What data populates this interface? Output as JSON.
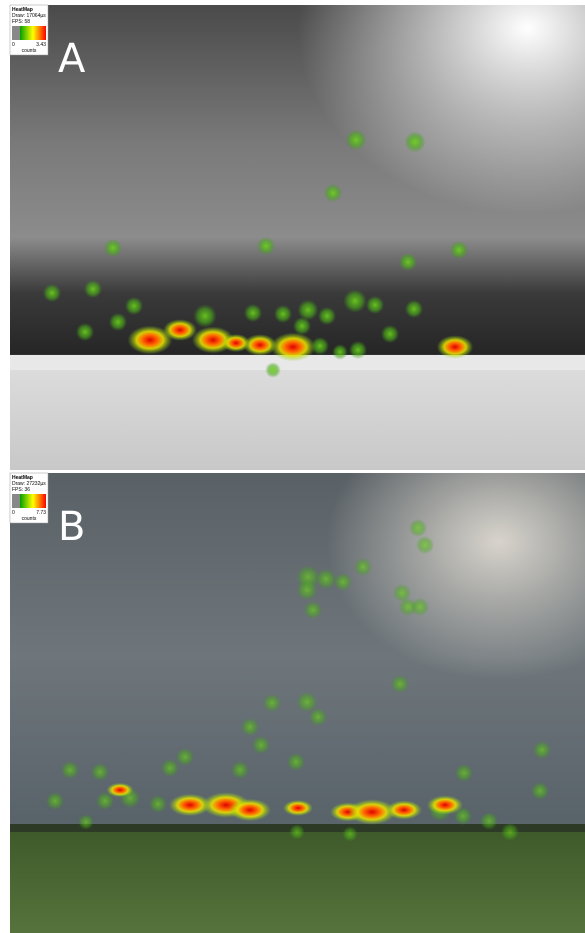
{
  "panels": [
    {
      "label": "A",
      "legend": {
        "title": "HeatMap",
        "draw": "Draw: 17064µs",
        "fps": "FPS: 58",
        "min": 0,
        "max": 3.43,
        "unit": "counts"
      }
    },
    {
      "label": "B",
      "legend": {
        "title": "HeatMap",
        "draw": "Draw: 27232µs",
        "fps": "FPS: 36",
        "min": 0,
        "max": 7.73,
        "unit": "counts"
      }
    }
  ]
}
